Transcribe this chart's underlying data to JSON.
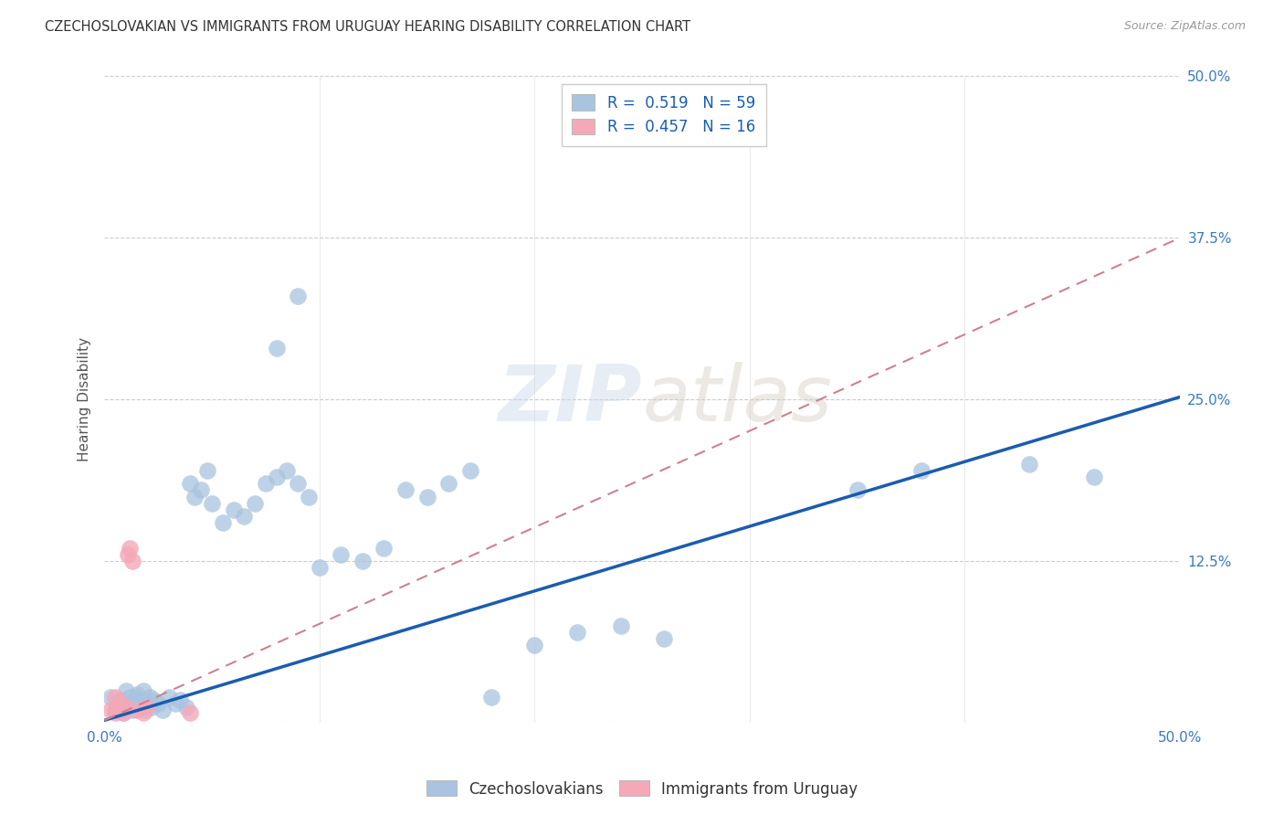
{
  "title": "CZECHOSLOVAKIAN VS IMMIGRANTS FROM URUGUAY HEARING DISABILITY CORRELATION CHART",
  "source": "Source: ZipAtlas.com",
  "ylabel": "Hearing Disability",
  "xlim": [
    0.0,
    0.5
  ],
  "ylim": [
    0.0,
    0.5
  ],
  "xticks": [
    0.0,
    0.1,
    0.2,
    0.3,
    0.4,
    0.5
  ],
  "yticks": [
    0.0,
    0.125,
    0.25,
    0.375,
    0.5
  ],
  "blue_R": 0.519,
  "blue_N": 59,
  "pink_R": 0.457,
  "pink_N": 16,
  "blue_color": "#a8c4e0",
  "pink_color": "#f4a8b8",
  "blue_line_color": "#1a5cb0",
  "pink_line_color": "#d08090",
  "legend_label1": "Czechoslovakians",
  "legend_label2": "Immigrants from Uruguay",
  "blue_line_x": [
    0.0,
    0.5
  ],
  "blue_line_y": [
    0.002,
    0.252
  ],
  "pink_line_x": [
    0.0,
    0.5
  ],
  "pink_line_y": [
    0.002,
    0.375
  ],
  "blue_scatter_x": [
    0.003,
    0.005,
    0.006,
    0.007,
    0.008,
    0.009,
    0.01,
    0.011,
    0.012,
    0.013,
    0.014,
    0.015,
    0.016,
    0.017,
    0.018,
    0.019,
    0.02,
    0.021,
    0.022,
    0.023,
    0.025,
    0.027,
    0.03,
    0.033,
    0.035,
    0.038,
    0.04,
    0.042,
    0.045,
    0.048,
    0.05,
    0.055,
    0.06,
    0.065,
    0.07,
    0.075,
    0.08,
    0.085,
    0.09,
    0.095,
    0.1,
    0.11,
    0.12,
    0.13,
    0.14,
    0.15,
    0.16,
    0.17,
    0.18,
    0.2,
    0.22,
    0.24,
    0.26,
    0.08,
    0.09,
    0.35,
    0.38,
    0.43,
    0.46
  ],
  "blue_scatter_y": [
    0.02,
    0.01,
    0.015,
    0.012,
    0.018,
    0.008,
    0.025,
    0.015,
    0.02,
    0.01,
    0.015,
    0.022,
    0.018,
    0.012,
    0.025,
    0.01,
    0.015,
    0.02,
    0.012,
    0.018,
    0.015,
    0.01,
    0.02,
    0.015,
    0.018,
    0.012,
    0.185,
    0.175,
    0.18,
    0.195,
    0.17,
    0.155,
    0.165,
    0.16,
    0.17,
    0.185,
    0.19,
    0.195,
    0.185,
    0.175,
    0.12,
    0.13,
    0.125,
    0.135,
    0.18,
    0.175,
    0.185,
    0.195,
    0.02,
    0.06,
    0.07,
    0.075,
    0.065,
    0.29,
    0.33,
    0.18,
    0.195,
    0.2,
    0.19
  ],
  "pink_scatter_x": [
    0.003,
    0.005,
    0.006,
    0.007,
    0.008,
    0.009,
    0.01,
    0.011,
    0.012,
    0.013,
    0.015,
    0.018,
    0.02,
    0.04,
    0.005,
    0.007
  ],
  "pink_scatter_y": [
    0.01,
    0.008,
    0.012,
    0.015,
    0.01,
    0.008,
    0.012,
    0.13,
    0.135,
    0.125,
    0.01,
    0.008,
    0.012,
    0.008,
    0.02,
    0.015
  ]
}
